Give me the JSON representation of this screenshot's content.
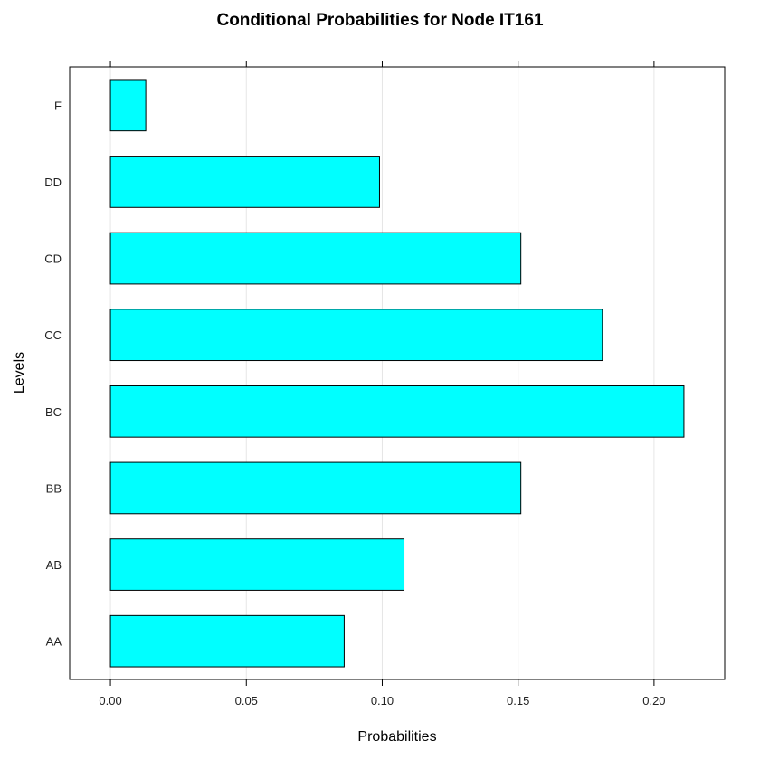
{
  "chart_data": {
    "type": "bar",
    "orientation": "horizontal",
    "title": "Conditional Probabilities for Node IT161",
    "xlabel": "Probabilities",
    "ylabel": "Levels",
    "categories": [
      "AA",
      "AB",
      "BB",
      "BC",
      "CC",
      "CD",
      "DD",
      "F"
    ],
    "values": [
      0.086,
      0.108,
      0.151,
      0.211,
      0.181,
      0.151,
      0.099,
      0.013
    ],
    "xlim": [
      -0.015,
      0.226
    ],
    "xticks": [
      0.0,
      0.05,
      0.1,
      0.15,
      0.2
    ],
    "xtick_labels": [
      "0.00",
      "0.05",
      "0.10",
      "0.15",
      "0.20"
    ],
    "grid": "vertical",
    "bar_color": "#00ffff",
    "bar_edge_color": "#000000"
  }
}
